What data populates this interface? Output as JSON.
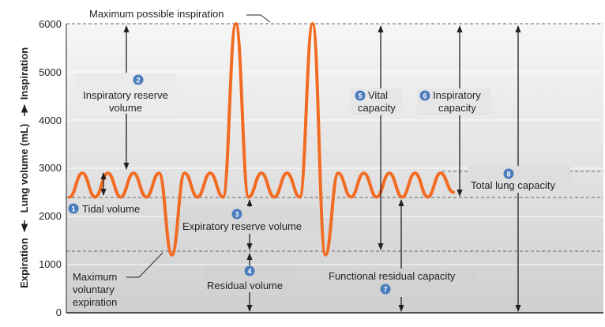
{
  "chart_data": {
    "type": "line",
    "ylabel_up": "Inspiration",
    "ylabel_mid": "Lung volume (mL)",
    "ylabel_down": "Expiration",
    "ylim": [
      0,
      6000
    ],
    "yticks": [
      "0",
      "1000",
      "2000",
      "3000",
      "4000",
      "5000",
      "6000"
    ],
    "grid": "horizontal bands",
    "levels": {
      "max_inspiration": 6000,
      "tidal_top": 2900,
      "tidal_bottom": 2400,
      "max_expiration": 1200
    },
    "series": [
      {
        "y": [
          2400,
          2900,
          2400,
          2900,
          2400,
          2900,
          2400,
          2900,
          1200,
          2900,
          2400,
          2900,
          2400,
          6000,
          2400,
          2900,
          2400,
          2900,
          2400,
          6000,
          1200,
          2900,
          2400,
          2900,
          2400,
          2900,
          2400,
          2900,
          2400,
          2900,
          2500
        ]
      }
    ],
    "line_color": "#f26b22"
  },
  "labels": {
    "max_insp": "Maximum possible inspiration",
    "irv_line1": "Inspiratory reserve",
    "irv_line2": "volume",
    "vital_line1": "Vital",
    "vital_line2": "capacity",
    "ic_line1": "Inspiratory",
    "ic_line2": "capacity",
    "tlc": "Total lung capacity",
    "tidal": "Tidal volume",
    "erv": "Expiratory reserve volume",
    "mve_line1": "Maximum",
    "mve_line2": "voluntary",
    "mve_line3": "expiration",
    "rv": "Residual volume",
    "frc": "Functional residual capacity"
  },
  "badges": {
    "tidal": "1",
    "irv": "2",
    "erv": "3",
    "rv": "4",
    "vital": "5",
    "ic": "6",
    "frc": "7",
    "tlc": "8"
  },
  "colors": {
    "badge": "#4a7bbd",
    "band_light": "#f2f2f2",
    "band_dark": "#d9d9d9",
    "dash": "#666666",
    "arrow": "#231f20"
  }
}
